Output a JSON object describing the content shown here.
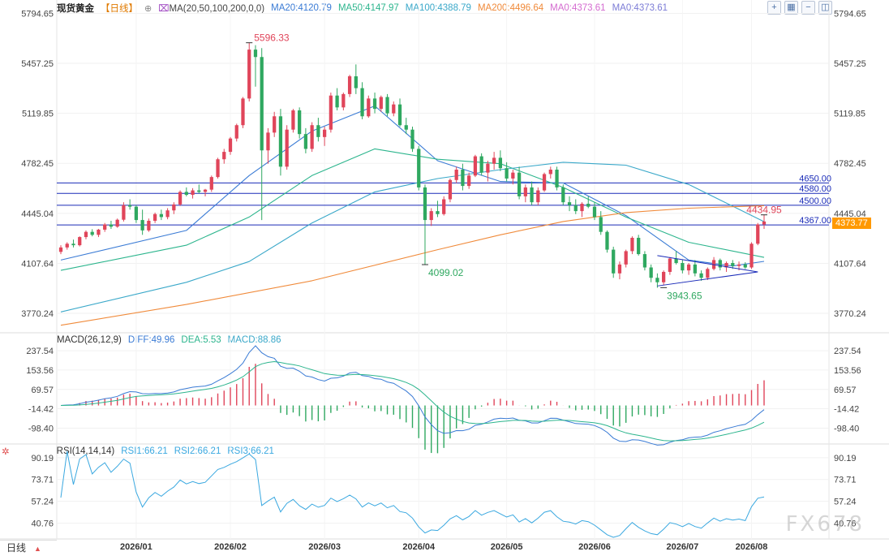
{
  "main_header": {
    "title": "现货黄金",
    "period_tag": "【日线】",
    "ma_label": "MA(20,50,100,200,0,0)",
    "ma20": "MA20:4120.79",
    "ma50": "MA50:4147.97",
    "ma100": "MA100:4388.79",
    "ma200": "MA200:4496.64",
    "ma0a": "MA0:4373.61",
    "ma0b": "MA0:4373.61"
  },
  "macd_header": {
    "label": "MACD(26,12,9)",
    "diff": "DIFF:49.96",
    "dea": "DEA:5.53",
    "macd": "MACD:88.86"
  },
  "rsi_header": {
    "label": "RSI(14,14,14)",
    "rsi1": "RSI1:66.21",
    "rsi2": "RSI2:66.21",
    "rsi3": "RSI3:66.21"
  },
  "current_price_tag": "4373.77",
  "period_tab": "日线",
  "watermark": "FX678",
  "colors": {
    "up": "#e0455a",
    "down": "#2fa860",
    "ma20": "#3a7bd5",
    "ma50": "#2cb58d",
    "ma100": "#3aa8c9",
    "ma200": "#f08a3a",
    "level": "#1a2bb8",
    "diff": "#3a7bd5",
    "dea": "#2cb58d",
    "rsi": "#3aa8e0",
    "price_tag": "#ff9900"
  },
  "chart_data": [
    {
      "type": "candlestick",
      "title": "现货黄金 日线",
      "x_ticks": [
        "2026/01",
        "2026/02",
        "2026/03",
        "2026/04",
        "2026/05",
        "2026/06",
        "2026/07",
        "2026/08"
      ],
      "y_ticks": [
        "5794.65",
        "5457.25",
        "5119.85",
        "4782.45",
        "4445.04",
        "4107.64",
        "3770.24"
      ],
      "ylim": [
        3650,
        5830
      ],
      "ohlc_approx": [
        [
          4185,
          4230,
          4170,
          4215
        ],
        [
          4215,
          4250,
          4200,
          4240
        ],
        [
          4240,
          4268,
          4215,
          4230
        ],
        [
          4230,
          4290,
          4222,
          4285
        ],
        [
          4285,
          4330,
          4270,
          4320
        ],
        [
          4320,
          4338,
          4290,
          4300
        ],
        [
          4300,
          4340,
          4285,
          4335
        ],
        [
          4335,
          4380,
          4320,
          4370
        ],
        [
          4370,
          4395,
          4340,
          4355
        ],
        [
          4355,
          4410,
          4348,
          4402
        ],
        [
          4402,
          4520,
          4390,
          4500
        ],
        [
          4500,
          4540,
          4470,
          4490
        ],
        [
          4490,
          4500,
          4380,
          4400
        ],
        [
          4400,
          4470,
          4300,
          4330
        ],
        [
          4330,
          4410,
          4320,
          4395
        ],
        [
          4395,
          4450,
          4380,
          4440
        ],
        [
          4440,
          4470,
          4400,
          4420
        ],
        [
          4420,
          4480,
          4405,
          4465
        ],
        [
          4465,
          4520,
          4440,
          4505
        ],
        [
          4505,
          4600,
          4495,
          4590
        ],
        [
          4590,
          4620,
          4560,
          4570
        ],
        [
          4570,
          4615,
          4545,
          4600
        ],
        [
          4600,
          4640,
          4580,
          4590
        ],
        [
          4590,
          4610,
          4560,
          4605
        ],
        [
          4605,
          4700,
          4590,
          4690
        ],
        [
          4690,
          4820,
          4680,
          4810
        ],
        [
          4810,
          4880,
          4780,
          4860
        ],
        [
          4860,
          4960,
          4840,
          4950
        ],
        [
          4950,
          5050,
          4930,
          5040
        ],
        [
          5040,
          5230,
          5020,
          5220
        ],
        [
          5220,
          5596,
          5200,
          5550
        ],
        [
          5550,
          5580,
          5300,
          5500
        ],
        [
          5500,
          5560,
          4400,
          4870
        ],
        [
          4870,
          5020,
          4780,
          4990
        ],
        [
          4990,
          5130,
          4960,
          5100
        ],
        [
          5100,
          5150,
          4700,
          4760
        ],
        [
          4760,
          5040,
          4740,
          5010
        ],
        [
          5010,
          5150,
          4990,
          5140
        ],
        [
          5140,
          5160,
          4950,
          4980
        ],
        [
          4980,
          5020,
          4850,
          4880
        ],
        [
          4880,
          5060,
          4860,
          5040
        ],
        [
          5040,
          5090,
          4930,
          4960
        ],
        [
          4960,
          5030,
          4900,
          5010
        ],
        [
          5010,
          5260,
          4990,
          5240
        ],
        [
          5240,
          5290,
          5140,
          5160
        ],
        [
          5160,
          5260,
          5140,
          5250
        ],
        [
          5250,
          5380,
          5230,
          5370
        ],
        [
          5370,
          5450,
          5250,
          5290
        ],
        [
          5290,
          5330,
          5080,
          5100
        ],
        [
          5100,
          5240,
          5090,
          5220
        ],
        [
          5220,
          5260,
          5120,
          5150
        ],
        [
          5150,
          5240,
          5130,
          5230
        ],
        [
          5230,
          5250,
          5100,
          5120
        ],
        [
          5120,
          5200,
          5100,
          5180
        ],
        [
          5180,
          5220,
          5030,
          5040
        ],
        [
          5040,
          5090,
          4980,
          5010
        ],
        [
          5010,
          5030,
          4860,
          4880
        ],
        [
          4880,
          4900,
          4600,
          4620
        ],
        [
          4620,
          4640,
          4099,
          4400
        ],
        [
          4400,
          4480,
          4360,
          4460
        ],
        [
          4460,
          4530,
          4420,
          4440
        ],
        [
          4440,
          4560,
          4430,
          4540
        ],
        [
          4540,
          4680,
          4520,
          4670
        ],
        [
          4670,
          4760,
          4650,
          4740
        ],
        [
          4740,
          4780,
          4600,
          4630
        ],
        [
          4630,
          4720,
          4610,
          4700
        ],
        [
          4700,
          4840,
          4690,
          4830
        ],
        [
          4830,
          4850,
          4700,
          4720
        ],
        [
          4720,
          4800,
          4660,
          4780
        ],
        [
          4780,
          4860,
          4740,
          4820
        ],
        [
          4820,
          4870,
          4730,
          4750
        ],
        [
          4750,
          4790,
          4660,
          4680
        ],
        [
          4680,
          4740,
          4640,
          4720
        ],
        [
          4720,
          4760,
          4540,
          4560
        ],
        [
          4560,
          4640,
          4520,
          4620
        ],
        [
          4620,
          4660,
          4500,
          4520
        ],
        [
          4520,
          4620,
          4500,
          4600
        ],
        [
          4600,
          4720,
          4590,
          4710
        ],
        [
          4710,
          4760,
          4680,
          4740
        ],
        [
          4740,
          4760,
          4600,
          4620
        ],
        [
          4620,
          4640,
          4500,
          4520
        ],
        [
          4520,
          4560,
          4460,
          4500
        ],
        [
          4500,
          4540,
          4440,
          4460
        ],
        [
          4460,
          4520,
          4420,
          4510
        ],
        [
          4510,
          4560,
          4480,
          4490
        ],
        [
          4490,
          4520,
          4400,
          4420
        ],
        [
          4420,
          4460,
          4300,
          4320
        ],
        [
          4320,
          4330,
          4180,
          4200
        ],
        [
          4200,
          4220,
          4010,
          4040
        ],
        [
          4040,
          4120,
          4000,
          4100
        ],
        [
          4100,
          4200,
          4080,
          4190
        ],
        [
          4190,
          4290,
          4170,
          4280
        ],
        [
          4280,
          4300,
          4160,
          4170
        ],
        [
          4170,
          4190,
          4060,
          4080
        ],
        [
          4080,
          4100,
          3980,
          4010
        ],
        [
          4010,
          4040,
          3943,
          3980
        ],
        [
          3980,
          4060,
          3960,
          4050
        ],
        [
          4050,
          4150,
          4030,
          4140
        ],
        [
          4140,
          4190,
          4100,
          4110
        ],
        [
          4110,
          4130,
          4040,
          4060
        ],
        [
          4060,
          4110,
          4030,
          4100
        ],
        [
          4100,
          4130,
          4020,
          4040
        ],
        [
          4040,
          4060,
          3990,
          4010
        ],
        [
          4010,
          4080,
          3995,
          4070
        ],
        [
          4070,
          4150,
          4060,
          4130
        ],
        [
          4130,
          4140,
          4060,
          4080
        ],
        [
          4080,
          4120,
          4050,
          4110
        ],
        [
          4110,
          4130,
          4070,
          4090
        ],
        [
          4090,
          4120,
          4060,
          4100
        ],
        [
          4100,
          4115,
          4070,
          4080
        ],
        [
          4080,
          4250,
          4070,
          4240
        ],
        [
          4240,
          4380,
          4230,
          4370
        ],
        [
          4370,
          4434.95,
          4340,
          4390
        ]
      ],
      "annotations": [
        {
          "text": "5596.33",
          "type": "high"
        },
        {
          "text": "4099.02",
          "type": "low"
        },
        {
          "text": "3943.65",
          "type": "low"
        },
        {
          "text": "4434.95",
          "type": "high"
        }
      ],
      "levels": [
        {
          "value": 4650,
          "label": "4650.00"
        },
        {
          "value": 4580,
          "label": "4580.00"
        },
        {
          "value": 4500,
          "label": "4500.00"
        },
        {
          "value": 4367,
          "label": "4367.00"
        }
      ],
      "series": [
        {
          "name": "MA20",
          "approx": [
            [
              0,
              4130
            ],
            [
              20,
              4330
            ],
            [
              30,
              4700
            ],
            [
              40,
              5000
            ],
            [
              50,
              5170
            ],
            [
              60,
              4800
            ],
            [
              70,
              4660
            ],
            [
              80,
              4650
            ],
            [
              90,
              4430
            ],
            [
              100,
              4130
            ],
            [
              107,
              4090
            ],
            [
              112,
              4121
            ]
          ]
        },
        {
          "name": "MA50",
          "approx": [
            [
              0,
              4060
            ],
            [
              20,
              4230
            ],
            [
              30,
              4420
            ],
            [
              40,
              4700
            ],
            [
              50,
              4880
            ],
            [
              60,
              4810
            ],
            [
              70,
              4780
            ],
            [
              80,
              4620
            ],
            [
              90,
              4420
            ],
            [
              100,
              4250
            ],
            [
              112,
              4148
            ]
          ]
        },
        {
          "name": "MA100",
          "approx": [
            [
              0,
              3780
            ],
            [
              20,
              3980
            ],
            [
              30,
              4120
            ],
            [
              40,
              4380
            ],
            [
              50,
              4590
            ],
            [
              60,
              4680
            ],
            [
              70,
              4740
            ],
            [
              80,
              4790
            ],
            [
              90,
              4770
            ],
            [
              100,
              4640
            ],
            [
              112,
              4389
            ]
          ]
        },
        {
          "name": "MA200",
          "approx": [
            [
              0,
              3690
            ],
            [
              20,
              3830
            ],
            [
              40,
              3990
            ],
            [
              60,
              4200
            ],
            [
              70,
              4300
            ],
            [
              80,
              4390
            ],
            [
              90,
              4450
            ],
            [
              100,
              4480
            ],
            [
              112,
              4497
            ]
          ]
        }
      ]
    },
    {
      "type": "macd",
      "title": "MACD(26,12,9)",
      "y_ticks": [
        "237.54",
        "153.56",
        "69.57",
        "-14.42",
        "-98.40"
      ],
      "ylim": [
        -160,
        280
      ],
      "DIFF": 49.96,
      "DEA": 5.53,
      "MACD": 88.86
    },
    {
      "type": "line",
      "title": "RSI(14,14,14)",
      "y_ticks": [
        "90.19",
        "73.71",
        "57.24",
        "40.76"
      ],
      "ylim": [
        30,
        95
      ],
      "series": [
        {
          "name": "RSI1",
          "value": 66.21
        },
        {
          "name": "RSI2",
          "value": 66.21
        },
        {
          "name": "RSI3",
          "value": 66.21
        }
      ]
    }
  ]
}
